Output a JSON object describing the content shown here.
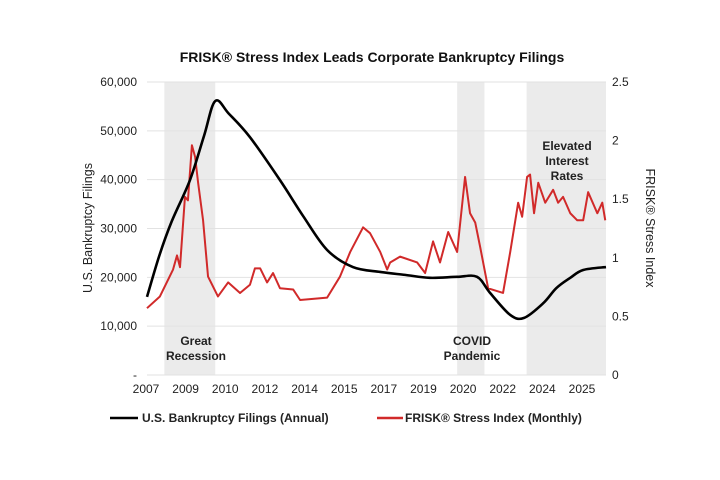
{
  "chart_data": {
    "type": "line",
    "title": "FRISK® Stress Index Leads Corporate Bankruptcy Filings",
    "ylabel": "U.S. Bankruptcy Filings",
    "y2label": "FRISK® Stress Index",
    "x_tick_labels": [
      "2007",
      "2009",
      "2010",
      "2012",
      "2014",
      "2015",
      "2017",
      "2019",
      "2020",
      "2022",
      "2024",
      "2025"
    ],
    "y_tick_labels": [
      "-",
      "10,000",
      "20,000",
      "30,000",
      "40,000",
      "50,000",
      "60,000"
    ],
    "y2_tick_labels": [
      "0",
      "0.5",
      "1",
      "1.5",
      "2",
      "2.5"
    ],
    "xlim": [
      2007,
      2025.5
    ],
    "ylim": [
      0,
      60000
    ],
    "y2lim": [
      0,
      2.5
    ],
    "grid": "horizontal",
    "legend": "bottom",
    "shaded_periods": [
      {
        "label_lines": [
          "Great",
          "Recession"
        ],
        "start": 2007.7,
        "end": 2009.75
      },
      {
        "label_lines": [
          "COVID",
          "Pandemic"
        ],
        "start": 2019.5,
        "end": 2020.6
      },
      {
        "label_lines": [
          "Elevated",
          "Interest",
          "Rates"
        ],
        "start": 2022.3,
        "end": 2025.5
      }
    ],
    "series": [
      {
        "name": "U.S. Bankruptcy Filings (Annual)",
        "axis": "left",
        "color": "#000000",
        "x": [
          2007.0,
          2007.5,
          2008.0,
          2008.73,
          2009.3,
          2009.75,
          2010.3,
          2011.15,
          2012.36,
          2013.3,
          2014.26,
          2015.3,
          2016.4,
          2017.4,
          2018.4,
          2019.5,
          2020.3,
          2020.83,
          2021.64,
          2022.2,
          2022.97,
          2023.5,
          2024.06,
          2024.58,
          2025.5
        ],
        "values": [
          16000,
          24500,
          31500,
          39900,
          49000,
          56100,
          53500,
          48700,
          39900,
          32500,
          25600,
          22100,
          21100,
          20500,
          19900,
          20100,
          20100,
          16800,
          12300,
          11700,
          14700,
          17800,
          19900,
          21500,
          22100
        ]
      },
      {
        "name": "FRISK® Stress Index (Monthly)",
        "axis": "right",
        "color": "#d12a2a",
        "x": [
          2007.0,
          2007.52,
          2008.05,
          2008.21,
          2008.33,
          2008.53,
          2008.65,
          2008.81,
          2008.94,
          2009.06,
          2009.26,
          2009.46,
          2009.86,
          2010.27,
          2010.75,
          2011.15,
          2011.35,
          2011.56,
          2011.84,
          2012.08,
          2012.36,
          2012.89,
          2013.17,
          2014.26,
          2014.78,
          2015.19,
          2015.71,
          2015.99,
          2016.4,
          2016.68,
          2016.8,
          2017.2,
          2017.89,
          2018.21,
          2018.53,
          2018.81,
          2019.14,
          2019.5,
          2019.82,
          2020.02,
          2020.23,
          2020.43,
          2020.75,
          2021.35,
          2021.64,
          2021.96,
          2022.12,
          2022.32,
          2022.44,
          2022.6,
          2022.77,
          2023.05,
          2023.37,
          2023.57,
          2023.77,
          2024.06,
          2024.34,
          2024.58,
          2024.78,
          2025.15,
          2025.35,
          2025.47
        ],
        "values": [
          0.57,
          0.67,
          0.9,
          1.02,
          0.92,
          1.52,
          1.49,
          1.96,
          1.86,
          1.64,
          1.32,
          0.84,
          0.67,
          0.79,
          0.7,
          0.77,
          0.91,
          0.91,
          0.79,
          0.87,
          0.74,
          0.73,
          0.64,
          0.66,
          0.84,
          1.05,
          1.26,
          1.21,
          1.05,
          0.9,
          0.96,
          1.01,
          0.96,
          0.87,
          1.14,
          0.96,
          1.22,
          1.05,
          1.69,
          1.38,
          1.3,
          1.09,
          0.74,
          0.7,
          1.05,
          1.47,
          1.35,
          1.69,
          1.71,
          1.38,
          1.64,
          1.47,
          1.58,
          1.47,
          1.52,
          1.38,
          1.32,
          1.32,
          1.56,
          1.38,
          1.47,
          1.32
        ]
      }
    ]
  }
}
